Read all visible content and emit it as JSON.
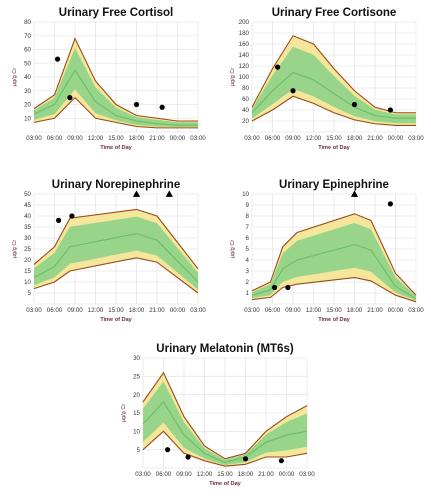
{
  "x_label": "Time of Day",
  "y_label": "µg/g Cr",
  "colors": {
    "outer_band": "#f4e69a",
    "inner_band": "#93d48a",
    "boundary_line": "#9a4b1a",
    "median_line": "#6fbf67",
    "marker": "#000000",
    "grid": "#e6e6e6"
  },
  "chart_data": [
    {
      "type": "line",
      "title": "Urinary Free Cortisol",
      "xlabel": "Time of Day",
      "ylabel": "µg/g Cr",
      "x_ticks": [
        "03:00",
        "06:00",
        "09:00",
        "12:00",
        "15:00",
        "18:00",
        "21:00",
        "00:00",
        "03:00"
      ],
      "ylim": [
        0,
        80
      ],
      "y_ticks": [
        10,
        20,
        30,
        40,
        50,
        60,
        70,
        80
      ],
      "grid": true,
      "x": [
        0,
        1,
        2,
        3,
        4,
        5,
        6,
        7,
        8
      ],
      "series": [
        {
          "role": "upper",
          "values": [
            17,
            27,
            68,
            37,
            20,
            12,
            10,
            8,
            8
          ]
        },
        {
          "role": "median",
          "values": [
            13,
            20,
            45,
            22,
            12,
            8,
            6,
            5,
            5
          ]
        },
        {
          "role": "lower",
          "values": [
            7,
            10,
            25,
            10,
            7,
            4,
            3,
            3,
            3
          ]
        }
      ],
      "points": [
        {
          "x": 1.15,
          "y": 53,
          "marker": "circle"
        },
        {
          "x": 1.75,
          "y": 25,
          "marker": "circle"
        },
        {
          "x": 5.0,
          "y": 20,
          "marker": "circle"
        },
        {
          "x": 6.25,
          "y": 18,
          "marker": "circle"
        }
      ]
    },
    {
      "type": "line",
      "title": "Urinary Free Cortisone",
      "xlabel": "Time of Day",
      "ylabel": "µg/g Cr",
      "x_ticks": [
        "03:00",
        "06:00",
        "09:00",
        "12:00",
        "15:00",
        "18:00",
        "21:00",
        "00:00",
        "03:00"
      ],
      "ylim": [
        0,
        200
      ],
      "y_ticks": [
        20,
        40,
        60,
        80,
        100,
        120,
        140,
        160,
        180,
        200
      ],
      "grid": true,
      "x": [
        0,
        1,
        2,
        3,
        4,
        5,
        6,
        7,
        8
      ],
      "series": [
        {
          "role": "upper",
          "values": [
            45,
            115,
            175,
            160,
            115,
            75,
            45,
            35,
            35
          ]
        },
        {
          "role": "median",
          "values": [
            35,
            75,
            108,
            95,
            70,
            45,
            30,
            25,
            25
          ]
        },
        {
          "role": "lower",
          "values": [
            20,
            40,
            65,
            52,
            35,
            22,
            15,
            12,
            12
          ]
        }
      ],
      "points": [
        {
          "x": 1.25,
          "y": 118,
          "marker": "circle"
        },
        {
          "x": 2.0,
          "y": 75,
          "marker": "circle"
        },
        {
          "x": 5.0,
          "y": 50,
          "marker": "circle"
        },
        {
          "x": 6.75,
          "y": 40,
          "marker": "circle"
        }
      ]
    },
    {
      "type": "line",
      "title": "Urinary Norepinephrine",
      "xlabel": "Time of Day",
      "ylabel": "µg/g Cr",
      "x_ticks": [
        "03:00",
        "06:00",
        "09:00",
        "12:00",
        "15:00",
        "18:00",
        "21:00",
        "00:00",
        "03:00"
      ],
      "ylim": [
        0,
        50
      ],
      "y_ticks": [
        5,
        10,
        15,
        20,
        25,
        30,
        35,
        40,
        45,
        50
      ],
      "grid": true,
      "x": [
        0,
        1,
        1.75,
        5,
        6,
        8
      ],
      "series": [
        {
          "role": "upper",
          "values": [
            18,
            26,
            39,
            43,
            40,
            16
          ]
        },
        {
          "role": "median",
          "values": [
            12,
            17,
            26,
            32,
            29,
            10
          ]
        },
        {
          "role": "lower",
          "values": [
            7,
            10,
            15,
            21,
            19,
            5
          ]
        }
      ],
      "points": [
        {
          "x": 1.2,
          "y": 38,
          "marker": "circle"
        },
        {
          "x": 1.85,
          "y": 40,
          "marker": "circle"
        },
        {
          "x": 5.0,
          "y": 50,
          "marker": "triangle"
        },
        {
          "x": 6.6,
          "y": 50,
          "marker": "triangle"
        }
      ]
    },
    {
      "type": "line",
      "title": "Urinary Epinephrine",
      "xlabel": "Time of Day",
      "ylabel": "µg/g Cr",
      "x_ticks": [
        "03:00",
        "06:00",
        "09:00",
        "12:00",
        "15:00",
        "18:00",
        "21:00",
        "00:00",
        "03:00"
      ],
      "ylim": [
        0,
        10
      ],
      "y_ticks": [
        1,
        2,
        3,
        4,
        5,
        6,
        7,
        8,
        9,
        10
      ],
      "grid": true,
      "x": [
        0,
        0.9,
        1.5,
        2.2,
        5,
        5.8,
        7,
        8
      ],
      "series": [
        {
          "role": "upper",
          "values": [
            1.2,
            2.0,
            5.2,
            6.5,
            8.2,
            7.6,
            2.8,
            0.8
          ]
        },
        {
          "role": "median",
          "values": [
            0.8,
            1.3,
            3.2,
            4.0,
            5.4,
            4.9,
            1.6,
            0.5
          ]
        },
        {
          "role": "lower",
          "values": [
            0.4,
            0.6,
            1.5,
            1.8,
            2.4,
            2.1,
            0.8,
            0.2
          ]
        }
      ],
      "points": [
        {
          "x": 1.1,
          "y": 1.5,
          "marker": "circle"
        },
        {
          "x": 1.75,
          "y": 1.5,
          "marker": "circle"
        },
        {
          "x": 5.0,
          "y": 10,
          "marker": "triangle"
        },
        {
          "x": 6.75,
          "y": 9.1,
          "marker": "circle"
        }
      ]
    },
    {
      "type": "line",
      "title": "Urinary Melatonin (MT6s)",
      "xlabel": "Time of Day",
      "ylabel": "µg/g Cr",
      "x_ticks": [
        "03:00",
        "06:00",
        "09:00",
        "12:00",
        "15:00",
        "18:00",
        "21:00",
        "00:00",
        "03:00"
      ],
      "ylim": [
        0,
        30
      ],
      "y_ticks": [
        5,
        10,
        15,
        20,
        25,
        30
      ],
      "grid": true,
      "x": [
        0,
        1,
        2,
        3,
        4,
        5,
        6,
        7,
        8
      ],
      "series": [
        {
          "role": "upper",
          "values": [
            18,
            26,
            14,
            6,
            2.5,
            4,
            10,
            14,
            17
          ]
        },
        {
          "role": "median",
          "values": [
            12,
            18,
            9,
            4,
            1.5,
            3,
            7,
            9,
            10
          ]
        },
        {
          "role": "lower",
          "values": [
            5,
            10,
            4,
            2,
            0.5,
            1,
            3,
            3,
            4
          ]
        }
      ],
      "points": [
        {
          "x": 1.2,
          "y": 5,
          "marker": "circle"
        },
        {
          "x": 2.2,
          "y": 3,
          "marker": "circle"
        },
        {
          "x": 5.0,
          "y": 2.5,
          "marker": "circle"
        },
        {
          "x": 6.75,
          "y": 2,
          "marker": "circle"
        }
      ]
    }
  ]
}
